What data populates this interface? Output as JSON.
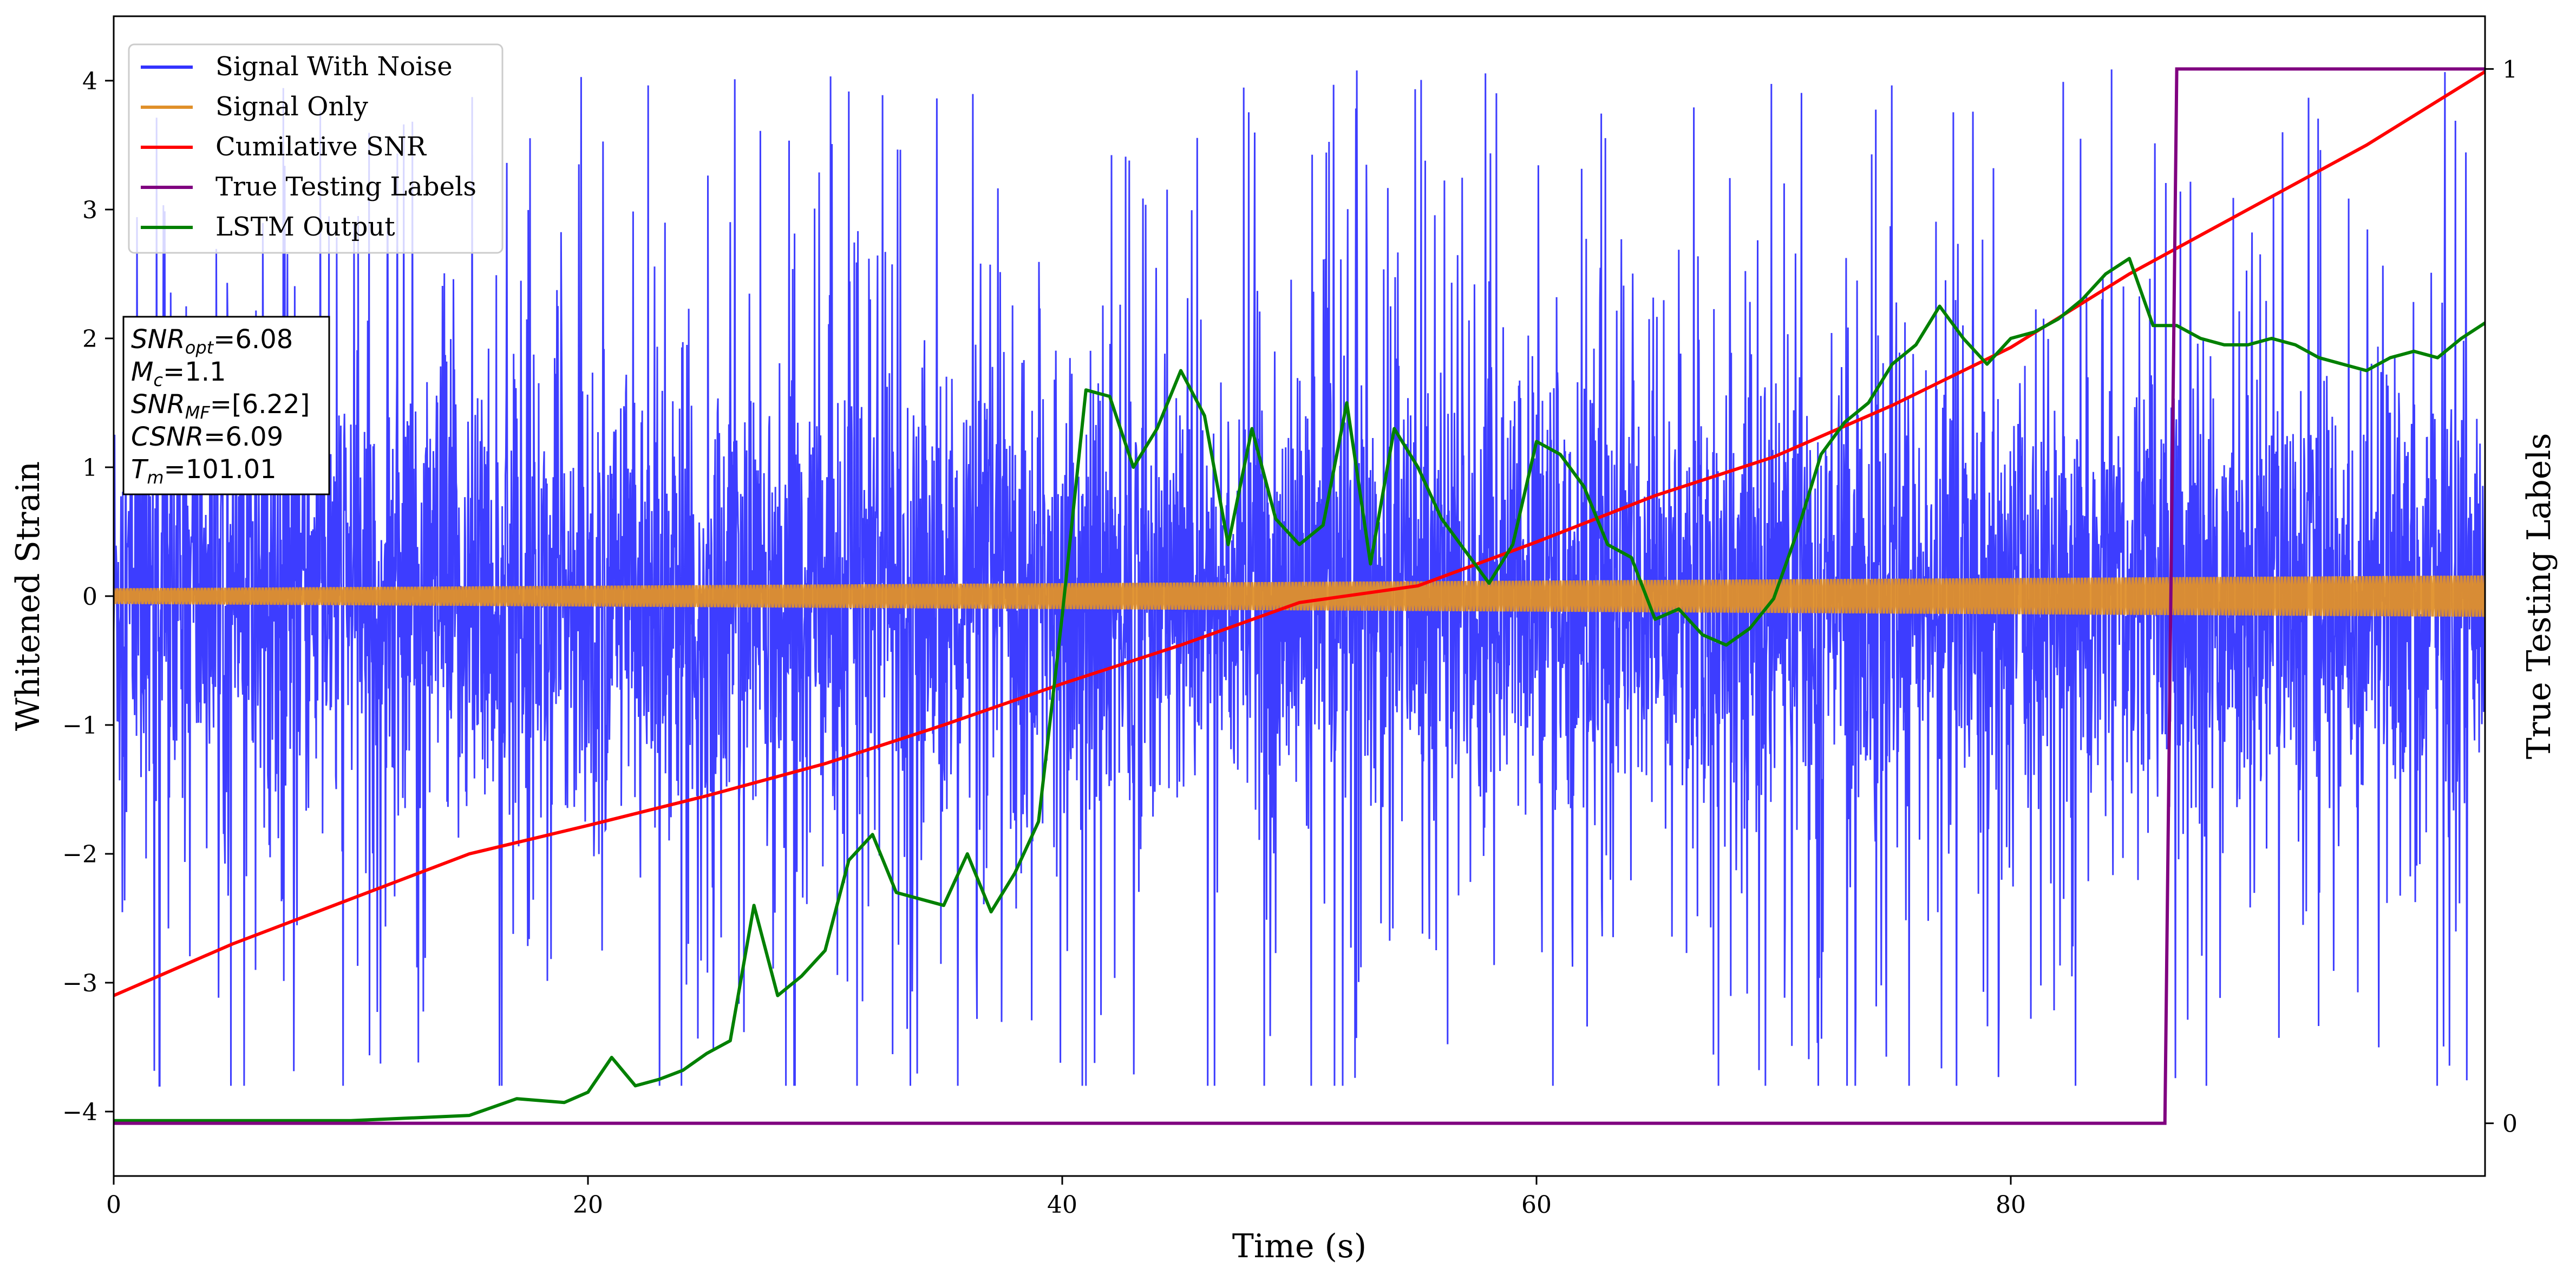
{
  "chart_data": {
    "type": "line",
    "xlabel": "Time (s)",
    "ylabel": "Whitened Strain",
    "y2label": "True Testing Labels",
    "xlim": [
      0,
      100
    ],
    "ylim": [
      -4.5,
      4.5
    ],
    "y2lim": [
      -0.05,
      1.05
    ],
    "xticks": [
      0,
      20,
      40,
      60,
      80
    ],
    "yticks": [
      -4,
      -3,
      -2,
      -1,
      0,
      1,
      2,
      3,
      4
    ],
    "y2ticks": [
      0,
      1
    ],
    "grid": false,
    "legend_position": "top-left",
    "series": [
      {
        "name": "Signal With Noise",
        "axis": "left",
        "color": "#3333ff",
        "style": "dense noise, approx. -3.8 to 4.2 (approximated)",
        "typical_range": [
          -1.6,
          1.6
        ],
        "envelope_range": [
          -3.8,
          4.2
        ]
      },
      {
        "name": "Signal Only",
        "axis": "left",
        "color": "#e0902a",
        "style": "oscillating band widening with time",
        "amplitude_start": 0.06,
        "amplitude_end": 0.16
      },
      {
        "name": "Cumilative SNR",
        "axis": "left",
        "color": "#ff0000",
        "x": [
          0,
          5,
          10,
          15,
          20,
          25,
          30,
          35,
          40,
          45,
          50,
          55,
          60,
          65,
          70,
          75,
          80,
          85,
          90,
          95,
          100
        ],
        "values": [
          -3.1,
          -2.7,
          -2.35,
          -2.0,
          -1.78,
          -1.55,
          -1.3,
          -1.0,
          -0.68,
          -0.38,
          -0.05,
          0.08,
          0.42,
          0.78,
          1.08,
          1.48,
          1.93,
          2.5,
          3.0,
          3.5,
          4.07
        ]
      },
      {
        "name": "True Testing Labels",
        "axis": "right",
        "color": "#800080",
        "x": [
          0,
          86.5,
          87.0,
          100
        ],
        "values": [
          0,
          0,
          1,
          1
        ]
      },
      {
        "name": "LSTM Output",
        "axis": "left",
        "color": "#008000",
        "x": [
          0,
          10,
          15,
          17,
          19,
          20,
          21,
          22,
          23,
          24,
          25,
          26,
          27,
          28,
          29,
          30,
          31,
          32,
          33,
          34,
          35,
          36,
          37,
          38,
          39,
          40,
          41,
          42,
          43,
          44,
          45,
          46,
          47,
          48,
          49,
          50,
          51,
          52,
          53,
          54,
          55,
          56,
          57,
          58,
          59,
          60,
          61,
          62,
          63,
          64,
          65,
          66,
          67,
          68,
          69,
          70,
          71,
          72,
          73,
          74,
          75,
          76,
          77,
          78,
          79,
          80,
          81,
          82,
          83,
          84,
          85,
          86,
          87,
          88,
          89,
          90,
          91,
          92,
          93,
          94,
          95,
          96,
          97,
          98,
          99,
          100
        ],
        "values": [
          -4.07,
          -4.07,
          -4.03,
          -3.9,
          -3.93,
          -3.85,
          -3.58,
          -3.8,
          -3.75,
          -3.68,
          -3.55,
          -3.45,
          -2.4,
          -3.1,
          -2.95,
          -2.75,
          -2.05,
          -1.85,
          -2.3,
          -2.35,
          -2.4,
          -2.0,
          -2.45,
          -2.15,
          -1.75,
          -0.15,
          1.6,
          1.55,
          1.0,
          1.3,
          1.75,
          1.4,
          0.4,
          1.3,
          0.6,
          0.4,
          0.55,
          1.5,
          0.25,
          1.3,
          1.0,
          0.6,
          0.35,
          0.1,
          0.4,
          1.2,
          1.1,
          0.85,
          0.4,
          0.3,
          -0.18,
          -0.1,
          -0.3,
          -0.38,
          -0.25,
          -0.02,
          0.5,
          1.1,
          1.35,
          1.5,
          1.8,
          1.95,
          2.25,
          2.0,
          1.8,
          2.0,
          2.05,
          2.15,
          2.3,
          2.5,
          2.62,
          2.1,
          2.1,
          2.0,
          1.95,
          1.95,
          2.0,
          1.95,
          1.85,
          1.8,
          1.75,
          1.85,
          1.9,
          1.85,
          2.0,
          2.12
        ]
      }
    ],
    "annotation": {
      "lines": [
        {
          "main": "SNR",
          "sub": "opt",
          "rest": "=6.08"
        },
        {
          "main": "M",
          "sub": "c",
          "rest": "=1.1"
        },
        {
          "main": "SNR",
          "sub": "MF",
          "rest": "=[6.22]"
        },
        {
          "main": "CSNR",
          "sub": "",
          "rest": "=6.09"
        },
        {
          "main": "T",
          "sub": "m",
          "rest": "=101.01"
        }
      ]
    }
  }
}
